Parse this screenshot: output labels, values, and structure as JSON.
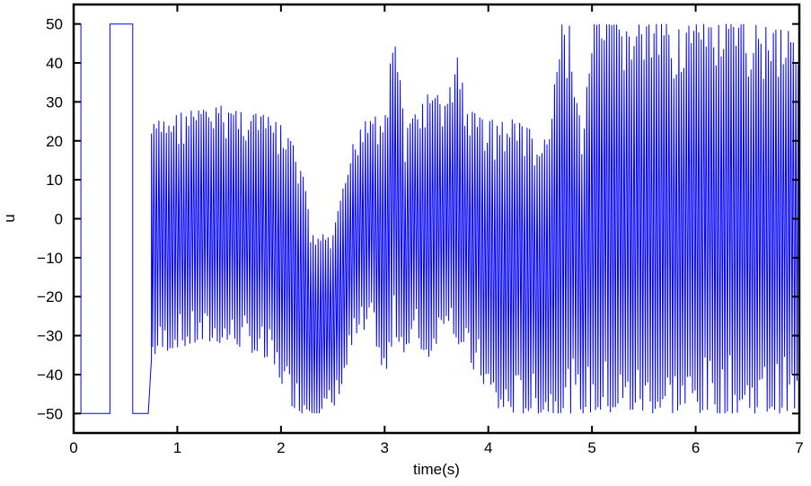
{
  "chart_data": {
    "type": "line",
    "title": "",
    "xlabel": "time(s)",
    "ylabel": "u",
    "xlim": [
      0,
      7
    ],
    "ylim": [
      -55,
      55
    ],
    "xticks": [
      0,
      1,
      2,
      3,
      4,
      5,
      6,
      7
    ],
    "yticks": [
      -50,
      -40,
      -30,
      -20,
      -10,
      0,
      10,
      20,
      30,
      40,
      50
    ],
    "grid": false,
    "color": "#0000ff",
    "series": [
      {
        "segment": "switching",
        "x": [
          0,
          0.07,
          0.07,
          0.35,
          0.35,
          0.57,
          0.57,
          0.72,
          0.75
        ],
        "y": [
          50,
          50,
          -50,
          -50,
          50,
          50,
          -50,
          -50,
          -36
        ]
      },
      {
        "segment": "chattering envelope",
        "t": [
          0.75,
          0.8,
          0.9,
          1.0,
          1.1,
          1.2,
          1.3,
          1.4,
          1.5,
          1.6,
          1.7,
          1.8,
          1.9,
          2.0,
          2.1,
          2.2,
          2.3,
          2.4,
          2.5,
          2.6,
          2.7,
          2.8,
          2.9,
          3.0,
          3.1,
          3.2,
          3.3,
          3.4,
          3.5,
          3.6,
          3.7,
          3.8,
          3.9,
          4.0,
          4.1,
          4.2,
          4.3,
          4.4,
          4.5,
          4.6,
          4.7,
          4.8,
          4.9,
          5.0,
          5.1,
          5.2,
          5.3,
          5.4,
          5.5,
          5.6,
          5.7,
          5.8,
          5.9,
          6.0,
          6.1,
          6.2,
          6.3,
          6.4,
          6.5,
          6.6,
          6.7,
          6.8,
          6.9,
          7.0
        ],
        "upper": [
          24,
          25,
          26,
          27,
          28,
          28,
          28,
          29,
          29,
          28,
          28,
          27,
          26,
          24,
          20,
          14,
          -4,
          -4,
          -4,
          8,
          20,
          27,
          28,
          28,
          50,
          22,
          28,
          32,
          32,
          30,
          43,
          28,
          27,
          26,
          25,
          25,
          27,
          23,
          18,
          25,
          50,
          50,
          20,
          50,
          50,
          50,
          50,
          50,
          50,
          50,
          50,
          50,
          50,
          50,
          50,
          50,
          50,
          50,
          50,
          50,
          50,
          50,
          50,
          50
        ],
        "lower": [
          -36,
          -35,
          -34,
          -33,
          -33,
          -32,
          -32,
          -32,
          -32,
          -33,
          -34,
          -36,
          -38,
          -42,
          -48,
          -50,
          -50,
          -50,
          -50,
          -42,
          -32,
          -30,
          -30,
          -43,
          -30,
          -35,
          -30,
          -37,
          -32,
          -25,
          -32,
          -38,
          -40,
          -45,
          -50,
          -50,
          -50,
          -50,
          -50,
          -50,
          -50,
          -50,
          -50,
          -50,
          -50,
          -50,
          -50,
          -50,
          -50,
          -50,
          -50,
          -50,
          -50,
          -50,
          -50,
          -50,
          -50,
          -50,
          -50,
          -50,
          -50,
          -50,
          -50,
          -50
        ]
      }
    ]
  }
}
